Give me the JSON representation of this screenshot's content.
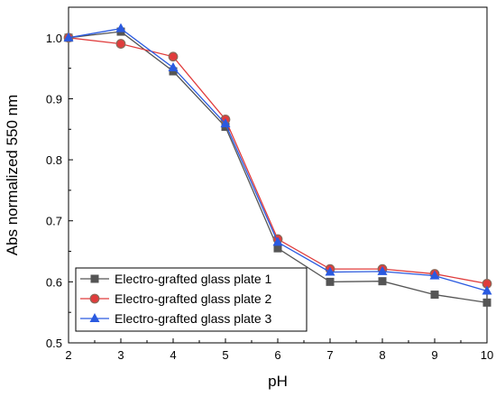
{
  "chart_data": {
    "type": "line",
    "xlabel": "pH",
    "ylabel": "Abs normalized 550 nm",
    "xlim": [
      2,
      10
    ],
    "ylim": [
      0.5,
      1.05
    ],
    "x_ticks": [
      "2",
      "3",
      "4",
      "5",
      "6",
      "7",
      "8",
      "9",
      "10"
    ],
    "y_ticks": [
      "0.5",
      "0.6",
      "0.7",
      "0.8",
      "0.9",
      "1.0"
    ],
    "x": [
      2,
      3,
      4,
      5,
      6,
      7,
      8,
      9,
      10
    ],
    "grid": false,
    "legend_position": "bottom-left",
    "series": [
      {
        "name": "Electro-grafted glass plate 1",
        "values": [
          1.0,
          1.01,
          0.945,
          0.854,
          0.655,
          0.6,
          0.601,
          0.579,
          0.566
        ],
        "color": "#555555",
        "marker": "square"
      },
      {
        "name": "Electro-grafted glass plate 2",
        "values": [
          1.0,
          0.99,
          0.969,
          0.866,
          0.67,
          0.621,
          0.621,
          0.613,
          0.597
        ],
        "color": "#e03c3c",
        "marker": "circle",
        "marker_edge": "#8a6a5a"
      },
      {
        "name": "Electro-grafted glass plate 3",
        "values": [
          1.0,
          1.015,
          0.951,
          0.859,
          0.665,
          0.616,
          0.617,
          0.61,
          0.585
        ],
        "color": "#2a5ae0",
        "marker": "triangle"
      }
    ]
  }
}
